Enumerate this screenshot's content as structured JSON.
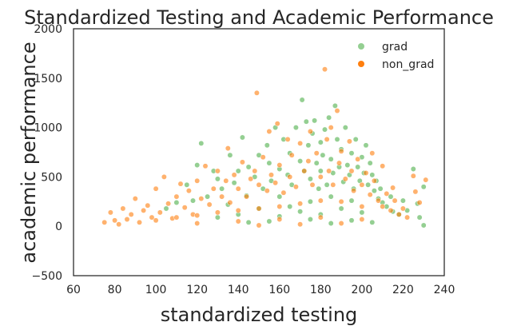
{
  "chart_data": {
    "type": "scatter",
    "title": "Standardized Testing and Academic Performance",
    "xlabel": "standardized testing",
    "ylabel": "academic performance",
    "xlim": [
      60,
      240
    ],
    "ylim": [
      -500,
      2000
    ],
    "xticks": [
      "60",
      "80",
      "100",
      "120",
      "140",
      "160",
      "180",
      "200",
      "220",
      "240"
    ],
    "yticks": [
      "−500",
      "0",
      "500",
      "1000",
      "1500",
      "2000"
    ],
    "grid": false,
    "legend_position": "top-right",
    "series": [
      {
        "name": "grad",
        "color": "#4daf4a",
        "points": [
          [
            105,
            180
          ],
          [
            110,
            240
          ],
          [
            115,
            420
          ],
          [
            118,
            260
          ],
          [
            120,
            620
          ],
          [
            122,
            840
          ],
          [
            125,
            300
          ],
          [
            128,
            560
          ],
          [
            130,
            480
          ],
          [
            132,
            380
          ],
          [
            135,
            220
          ],
          [
            136,
            720
          ],
          [
            138,
            440
          ],
          [
            140,
            560
          ],
          [
            142,
            900
          ],
          [
            144,
            310
          ],
          [
            145,
            600
          ],
          [
            148,
            500
          ],
          [
            150,
            720
          ],
          [
            152,
            380
          ],
          [
            154,
            820
          ],
          [
            155,
            640
          ],
          [
            156,
            460
          ],
          [
            158,
            1000
          ],
          [
            160,
            580
          ],
          [
            160,
            300
          ],
          [
            162,
            880
          ],
          [
            164,
            520
          ],
          [
            165,
            740
          ],
          [
            166,
            420
          ],
          [
            168,
            1000
          ],
          [
            170,
            660
          ],
          [
            171,
            1280
          ],
          [
            172,
            560
          ],
          [
            173,
            1060
          ],
          [
            174,
            820
          ],
          [
            175,
            480
          ],
          [
            176,
            940
          ],
          [
            177,
            1070
          ],
          [
            178,
            640
          ],
          [
            179,
            380
          ],
          [
            180,
            850
          ],
          [
            180,
            560
          ],
          [
            181,
            720
          ],
          [
            182,
            980
          ],
          [
            183,
            420
          ],
          [
            184,
            1100
          ],
          [
            185,
            680
          ],
          [
            186,
            540
          ],
          [
            187,
            1220
          ],
          [
            188,
            880
          ],
          [
            189,
            600
          ],
          [
            190,
            780
          ],
          [
            191,
            450
          ],
          [
            192,
            1000
          ],
          [
            193,
            620
          ],
          [
            194,
            520
          ],
          [
            195,
            740
          ],
          [
            196,
            380
          ],
          [
            197,
            880
          ],
          [
            198,
            600
          ],
          [
            199,
            460
          ],
          [
            200,
            700
          ],
          [
            201,
            540
          ],
          [
            202,
            820
          ],
          [
            203,
            420
          ],
          [
            204,
            640
          ],
          [
            205,
            520
          ],
          [
            206,
            360
          ],
          [
            207,
            460
          ],
          [
            208,
            280
          ],
          [
            209,
            380
          ],
          [
            210,
            240
          ],
          [
            212,
            200
          ],
          [
            214,
            300
          ],
          [
            215,
            150
          ],
          [
            218,
            120
          ],
          [
            220,
            260
          ],
          [
            222,
            160
          ],
          [
            225,
            580
          ],
          [
            227,
            230
          ],
          [
            228,
            90
          ],
          [
            230,
            400
          ],
          [
            230,
            10
          ],
          [
            165,
            200
          ],
          [
            175,
            250
          ],
          [
            185,
            300
          ],
          [
            195,
            260
          ],
          [
            150,
            180
          ],
          [
            140,
            120
          ],
          [
            170,
            150
          ],
          [
            180,
            120
          ],
          [
            190,
            180
          ],
          [
            200,
            140
          ],
          [
            160,
            100
          ],
          [
            130,
            90
          ],
          [
            185,
            30
          ],
          [
            195,
            60
          ],
          [
            205,
            40
          ],
          [
            175,
            70
          ],
          [
            155,
            50
          ],
          [
            145,
            40
          ]
        ]
      },
      {
        "name": "non_grad",
        "color": "#ff7f0e",
        "points": [
          [
            75,
            40
          ],
          [
            78,
            140
          ],
          [
            80,
            60
          ],
          [
            82,
            20
          ],
          [
            84,
            180
          ],
          [
            86,
            70
          ],
          [
            88,
            120
          ],
          [
            90,
            280
          ],
          [
            92,
            40
          ],
          [
            94,
            160
          ],
          [
            96,
            210
          ],
          [
            98,
            90
          ],
          [
            100,
            380
          ],
          [
            102,
            140
          ],
          [
            104,
            500
          ],
          [
            106,
            230
          ],
          [
            108,
            80
          ],
          [
            110,
            300
          ],
          [
            112,
            430
          ],
          [
            114,
            190
          ],
          [
            116,
            360
          ],
          [
            118,
            120
          ],
          [
            120,
            460
          ],
          [
            122,
            280
          ],
          [
            124,
            610
          ],
          [
            126,
            220
          ],
          [
            128,
            380
          ],
          [
            130,
            560
          ],
          [
            132,
            300
          ],
          [
            134,
            460
          ],
          [
            135,
            790
          ],
          [
            136,
            240
          ],
          [
            138,
            520
          ],
          [
            140,
            380
          ],
          [
            142,
            650
          ],
          [
            144,
            300
          ],
          [
            146,
            480
          ],
          [
            148,
            560
          ],
          [
            149,
            1350
          ],
          [
            150,
            420
          ],
          [
            152,
            700
          ],
          [
            154,
            360
          ],
          [
            155,
            960
          ],
          [
            156,
            520
          ],
          [
            158,
            440
          ],
          [
            159,
            1040
          ],
          [
            160,
            620
          ],
          [
            162,
            340
          ],
          [
            164,
            880
          ],
          [
            165,
            500
          ],
          [
            166,
            720
          ],
          [
            168,
            400
          ],
          [
            170,
            840
          ],
          [
            172,
            560
          ],
          [
            174,
            660
          ],
          [
            175,
            960
          ],
          [
            176,
            420
          ],
          [
            178,
            740
          ],
          [
            180,
            500
          ],
          [
            182,
            1590
          ],
          [
            183,
            880
          ],
          [
            184,
            560
          ],
          [
            185,
            1000
          ],
          [
            186,
            420
          ],
          [
            188,
            1170
          ],
          [
            189,
            640
          ],
          [
            190,
            760
          ],
          [
            192,
            480
          ],
          [
            194,
            860
          ],
          [
            195,
            560
          ],
          [
            196,
            360
          ],
          [
            198,
            680
          ],
          [
            200,
            420
          ],
          [
            202,
            540
          ],
          [
            204,
            320
          ],
          [
            206,
            460
          ],
          [
            208,
            260
          ],
          [
            210,
            200
          ],
          [
            212,
            330
          ],
          [
            214,
            160
          ],
          [
            216,
            260
          ],
          [
            218,
            120
          ],
          [
            220,
            180
          ],
          [
            222,
            90
          ],
          [
            225,
            510
          ],
          [
            228,
            240
          ],
          [
            231,
            470
          ],
          [
            226,
            350
          ],
          [
            215,
            390
          ],
          [
            210,
            610
          ],
          [
            205,
            740
          ],
          [
            100,
            60
          ],
          [
            110,
            90
          ],
          [
            120,
            110
          ],
          [
            130,
            140
          ],
          [
            140,
            160
          ],
          [
            150,
            180
          ],
          [
            160,
            200
          ],
          [
            170,
            230
          ],
          [
            180,
            260
          ],
          [
            190,
            250
          ],
          [
            200,
            200
          ],
          [
            120,
            30
          ],
          [
            140,
            50
          ],
          [
            160,
            70
          ],
          [
            180,
            90
          ],
          [
            200,
            70
          ],
          [
            150,
            10
          ],
          [
            170,
            20
          ],
          [
            190,
            30
          ]
        ]
      }
    ]
  }
}
